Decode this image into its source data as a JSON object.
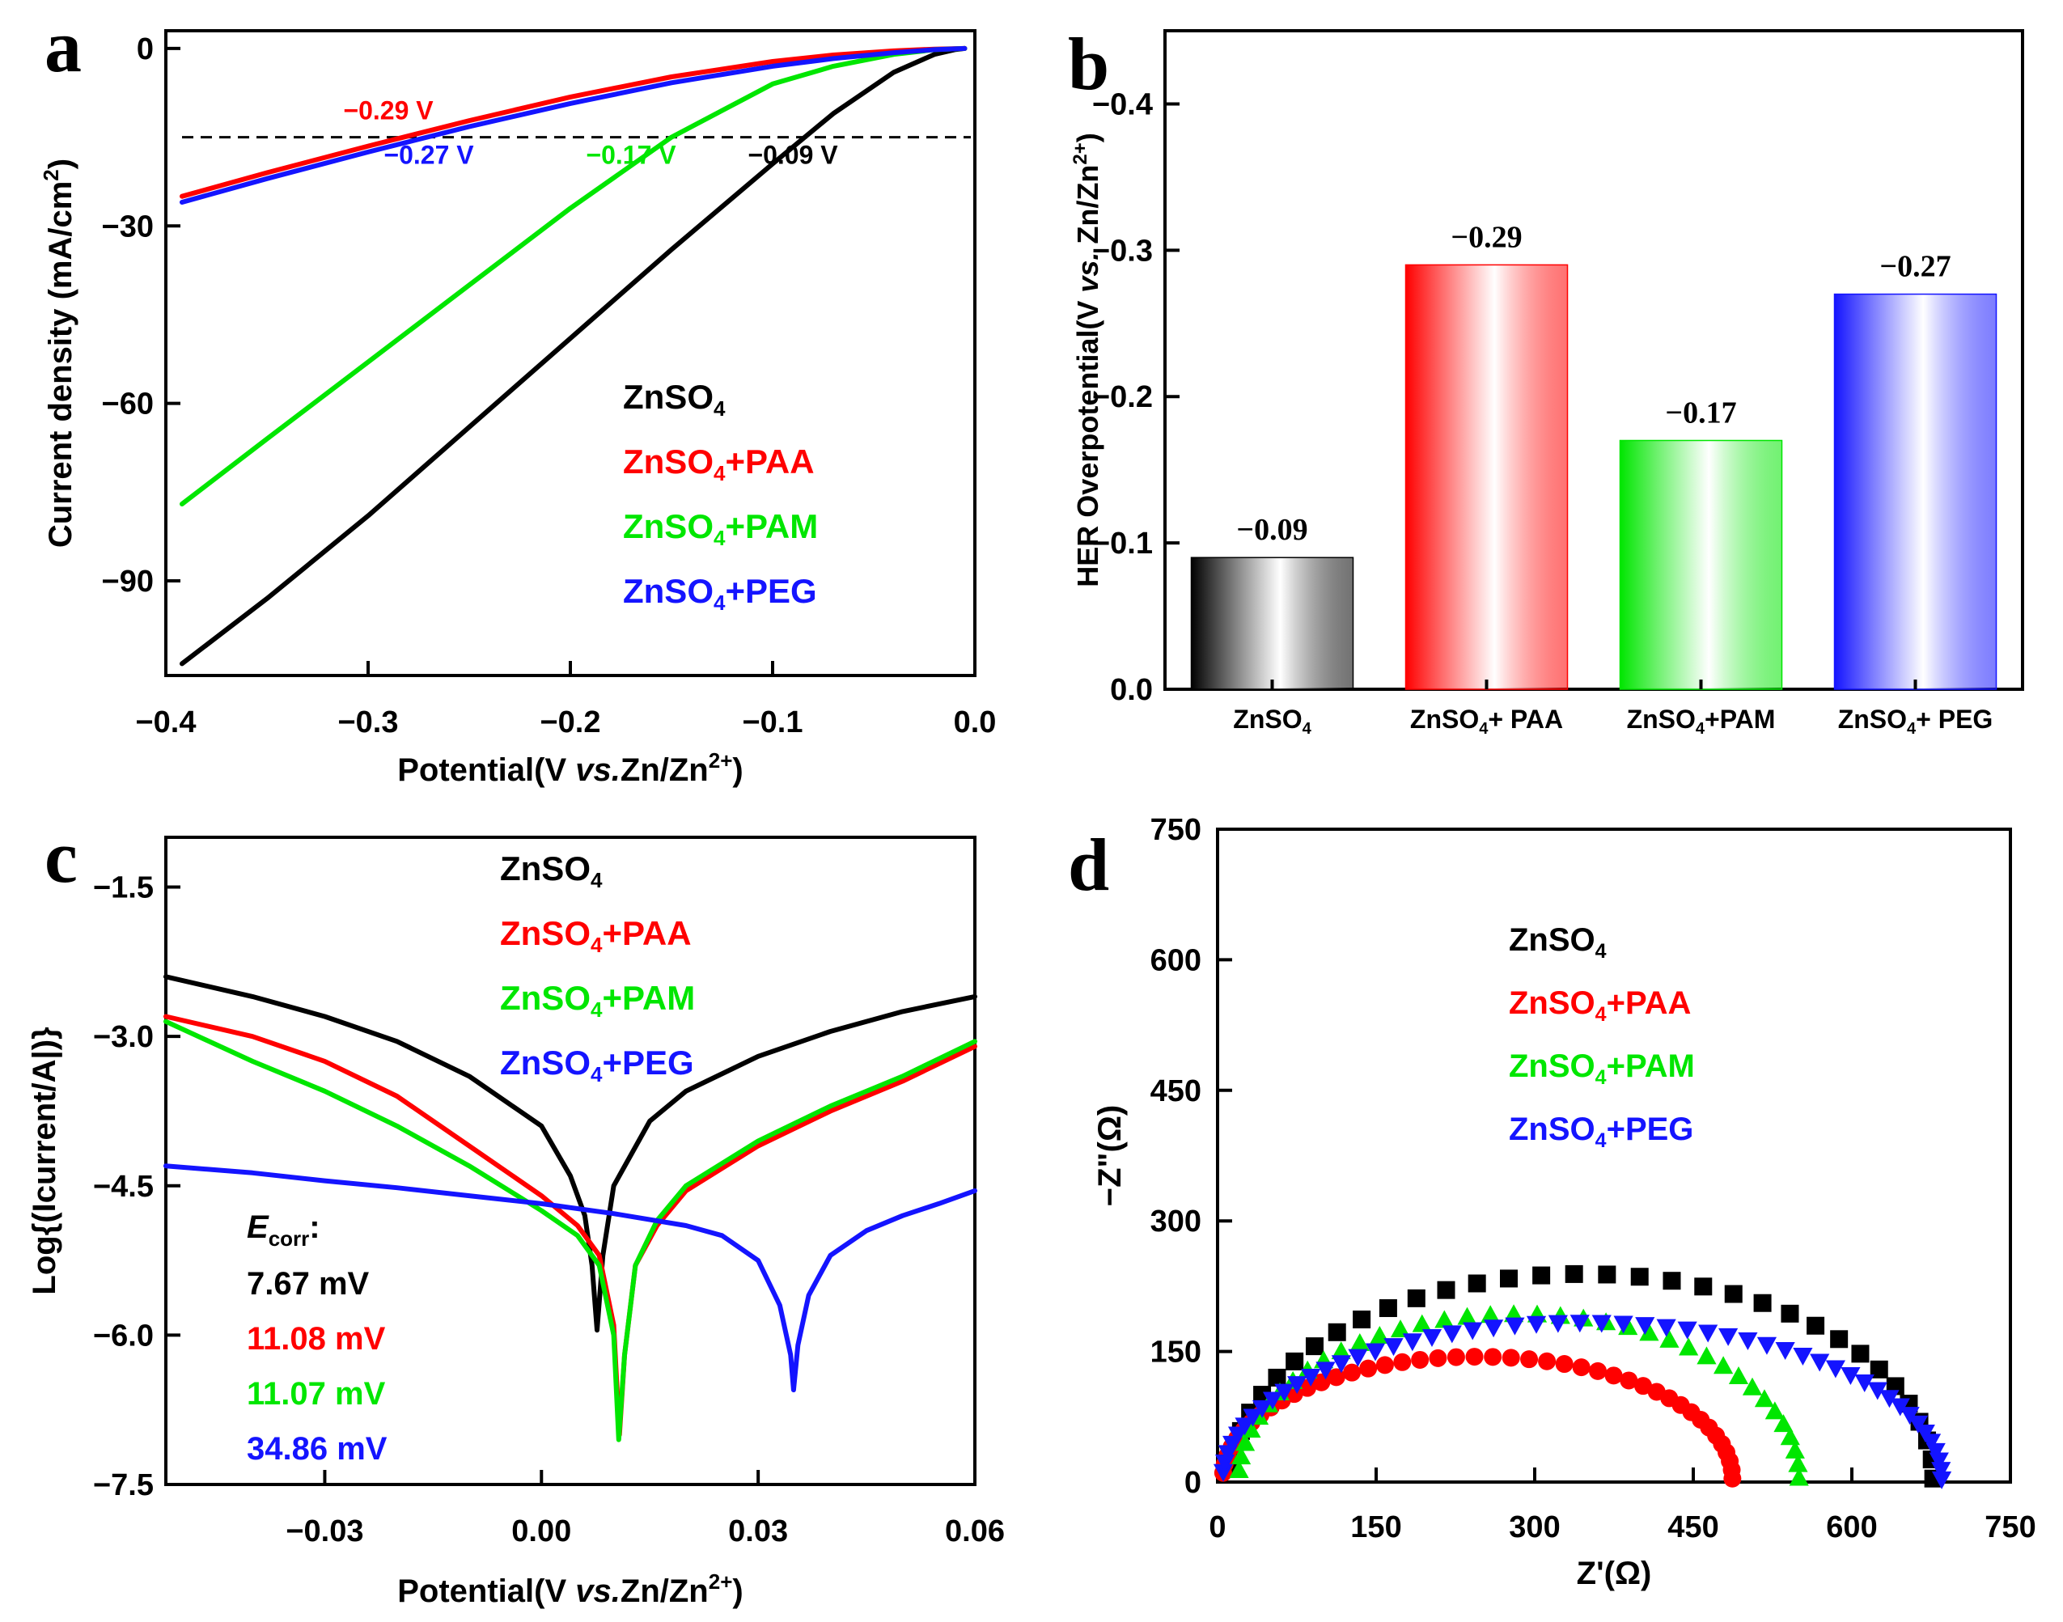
{
  "colors": {
    "ZnSO4": "#000000",
    "ZnSO4+PAA": "#ff0000",
    "ZnSO4+PAM": "#00e600",
    "ZnSO4+PEG": "#1414ff"
  },
  "chart_data": [
    {
      "panel": "a",
      "type": "line",
      "xlabel_parts": [
        "Potential(V ",
        "vs.",
        "Zn/Zn",
        "2+",
        ")"
      ],
      "ylabel_parts": [
        "Current density (mA/cm",
        "2",
        ")"
      ],
      "xlim": [
        -0.4,
        0.0
      ],
      "ylim": [
        -106,
        3
      ],
      "xticks": [
        -0.4,
        -0.3,
        -0.2,
        -0.1,
        0.0
      ],
      "xtick_labels": [
        "−0.4",
        "−0.3",
        "−0.2",
        "−0.1",
        "0.0"
      ],
      "yticks": [
        0,
        -30,
        -60,
        -90
      ],
      "ytick_labels": [
        "0",
        "−30",
        "−60",
        "−90"
      ],
      "reference_line_y": -15,
      "series": [
        {
          "name": "ZnSO4",
          "x": [
            -0.392,
            -0.35,
            -0.3,
            -0.25,
            -0.2,
            -0.15,
            -0.1,
            -0.07,
            -0.04,
            -0.02,
            -0.01,
            -0.005
          ],
          "y": [
            -104,
            -93,
            -79,
            -64,
            -49,
            -34,
            -19.5,
            -11,
            -4,
            -1,
            -0.2,
            0
          ]
        },
        {
          "name": "ZnSO4+PAA",
          "x": [
            -0.392,
            -0.35,
            -0.3,
            -0.25,
            -0.2,
            -0.15,
            -0.1,
            -0.07,
            -0.04,
            -0.02,
            -0.005
          ],
          "y": [
            -25,
            -21,
            -16.5,
            -12.2,
            -8.2,
            -4.8,
            -2.2,
            -1.1,
            -0.4,
            -0.1,
            0
          ]
        },
        {
          "name": "ZnSO4+PAM",
          "x": [
            -0.392,
            -0.35,
            -0.3,
            -0.25,
            -0.2,
            -0.15,
            -0.1,
            -0.07,
            -0.04,
            -0.02,
            -0.005
          ],
          "y": [
            -77,
            -66,
            -53,
            -40,
            -27,
            -15,
            -6,
            -3,
            -1,
            -0.2,
            0
          ]
        },
        {
          "name": "ZnSO4+PEG",
          "x": [
            -0.392,
            -0.35,
            -0.3,
            -0.25,
            -0.2,
            -0.15,
            -0.1,
            -0.07,
            -0.04,
            -0.02,
            -0.005
          ],
          "y": [
            -26,
            -22,
            -17.5,
            -13.2,
            -9.3,
            -5.8,
            -3,
            -1.7,
            -0.7,
            -0.2,
            0
          ]
        }
      ],
      "annotations": [
        {
          "text": "−0.29 V",
          "series": "ZnSO4+PAA",
          "x": -0.29,
          "y": -12
        },
        {
          "text": "−0.27 V",
          "series": "ZnSO4+PEG",
          "x": -0.27,
          "y": -19.5
        },
        {
          "text": "−0.17 V",
          "series": "ZnSO4+PAM",
          "x": -0.17,
          "y": -19.5
        },
        {
          "text": "−0.09 V",
          "series": "ZnSO4",
          "x": -0.09,
          "y": -19.5
        }
      ],
      "legend": [
        {
          "series": "ZnSO4",
          "base": "ZnSO",
          "sub": "4",
          "suffix": ""
        },
        {
          "series": "ZnSO4+PAA",
          "base": "ZnSO",
          "sub": "4",
          "suffix": "+PAA"
        },
        {
          "series": "ZnSO4+PAM",
          "base": "ZnSO",
          "sub": "4",
          "suffix": "+PAM"
        },
        {
          "series": "ZnSO4+PEG",
          "base": "ZnSO",
          "sub": "4",
          "suffix": "+PEG"
        }
      ]
    },
    {
      "panel": "b",
      "type": "bar",
      "ylabel_parts": [
        "HER Overpotential(V ",
        "vs.",
        " Zn/Zn",
        "2+",
        ")"
      ],
      "ylim": [
        0.0,
        -0.45
      ],
      "yticks": [
        0.0,
        -0.1,
        -0.2,
        -0.3,
        -0.4
      ],
      "ytick_labels": [
        "0.0",
        "−0.1",
        "−0.2",
        "−0.3",
        "−0.4"
      ],
      "categories": [
        {
          "series": "ZnSO4",
          "base": "ZnSO",
          "sub": "4",
          "suffix": ""
        },
        {
          "series": "ZnSO4+PAA",
          "base": "ZnSO",
          "sub": "4",
          "suffix": "+ PAA"
        },
        {
          "series": "ZnSO4+PAM",
          "base": "ZnSO",
          "sub": "4",
          "suffix": "+PAM"
        },
        {
          "series": "ZnSO4+PEG",
          "base": "ZnSO",
          "sub": "4",
          "suffix": "+ PEG"
        }
      ],
      "values": [
        -0.09,
        -0.29,
        -0.17,
        -0.27
      ],
      "value_labels": [
        "−0.09",
        "−0.29",
        "−0.17",
        "−0.27"
      ]
    },
    {
      "panel": "c",
      "type": "line",
      "xlabel_parts": [
        "Potential(V ",
        "vs.",
        "Zn/Zn",
        "2+",
        ")"
      ],
      "ylabel": "Log{(Icurrent/A|)}",
      "xlim": [
        -0.052,
        0.06
      ],
      "ylim": [
        -7.5,
        -1.0
      ],
      "xticks": [
        -0.03,
        0.0,
        0.03,
        0.06
      ],
      "xtick_labels": [
        "−0.03",
        "0.00",
        "0.03",
        "0.06"
      ],
      "yticks": [
        -1.5,
        -3.0,
        -4.5,
        -6.0,
        -7.5
      ],
      "ytick_labels": [
        "−1.5",
        "−3.0",
        "−4.5",
        "−6.0",
        "−7.5"
      ],
      "series": [
        {
          "name": "ZnSO4",
          "x": [
            -0.052,
            -0.04,
            -0.03,
            -0.02,
            -0.01,
            0.0,
            0.004,
            0.006,
            0.007,
            0.0077,
            0.0085,
            0.01,
            0.015,
            0.02,
            0.03,
            0.04,
            0.05,
            0.06
          ],
          "y": [
            -2.4,
            -2.6,
            -2.8,
            -3.05,
            -3.4,
            -3.9,
            -4.4,
            -4.8,
            -5.3,
            -5.95,
            -5.2,
            -4.5,
            -3.85,
            -3.55,
            -3.2,
            -2.95,
            -2.75,
            -2.6
          ]
        },
        {
          "name": "ZnSO4+PAA",
          "x": [
            -0.052,
            -0.04,
            -0.03,
            -0.02,
            -0.01,
            0.0,
            0.005,
            0.008,
            0.01,
            0.0108,
            0.0115,
            0.013,
            0.016,
            0.02,
            0.03,
            0.04,
            0.05,
            0.06
          ],
          "y": [
            -2.8,
            -3.0,
            -3.25,
            -3.6,
            -4.1,
            -4.6,
            -4.9,
            -5.2,
            -5.9,
            -7.0,
            -6.2,
            -5.3,
            -4.9,
            -4.55,
            -4.1,
            -3.75,
            -3.45,
            -3.1
          ]
        },
        {
          "name": "ZnSO4+PAM",
          "x": [
            -0.052,
            -0.04,
            -0.03,
            -0.02,
            -0.01,
            0.0,
            0.005,
            0.008,
            0.01,
            0.0107,
            0.0115,
            0.013,
            0.016,
            0.02,
            0.03,
            0.04,
            0.05,
            0.06
          ],
          "y": [
            -2.85,
            -3.25,
            -3.55,
            -3.9,
            -4.3,
            -4.75,
            -5.0,
            -5.3,
            -6.0,
            -7.05,
            -6.2,
            -5.3,
            -4.85,
            -4.5,
            -4.05,
            -3.7,
            -3.4,
            -3.05
          ]
        },
        {
          "name": "ZnSO4+PEG",
          "x": [
            -0.052,
            -0.04,
            -0.03,
            -0.02,
            -0.01,
            0.0,
            0.01,
            0.02,
            0.025,
            0.03,
            0.033,
            0.0345,
            0.0349,
            0.0355,
            0.037,
            0.04,
            0.045,
            0.05,
            0.055,
            0.06
          ],
          "y": [
            -4.3,
            -4.37,
            -4.45,
            -4.52,
            -4.6,
            -4.68,
            -4.78,
            -4.9,
            -5.0,
            -5.25,
            -5.7,
            -6.2,
            -6.55,
            -6.1,
            -5.6,
            -5.2,
            -4.95,
            -4.8,
            -4.68,
            -4.55
          ]
        }
      ],
      "legend": [
        {
          "series": "ZnSO4",
          "base": "ZnSO",
          "sub": "4",
          "suffix": ""
        },
        {
          "series": "ZnSO4+PAA",
          "base": "ZnSO",
          "sub": "4",
          "suffix": "+PAA"
        },
        {
          "series": "ZnSO4+PAM",
          "base": "ZnSO",
          "sub": "4",
          "suffix": "+PAM"
        },
        {
          "series": "ZnSO4+PEG",
          "base": "ZnSO",
          "sub": "4",
          "suffix": "+PEG"
        }
      ],
      "ecorr": {
        "label_base": "E",
        "label_sub": "corr",
        "label_suffix": ":",
        "values": [
          {
            "series": "ZnSO4",
            "text": "7.67 mV"
          },
          {
            "series": "ZnSO4+PAA",
            "text": "11.08 mV"
          },
          {
            "series": "ZnSO4+PAM",
            "text": "11.07 mV"
          },
          {
            "series": "ZnSO4+PEG",
            "text": "34.86 mV"
          }
        ]
      }
    },
    {
      "panel": "d",
      "type": "scatter",
      "xlabel": "Z'(Ω)",
      "ylabel": "−Z\"(Ω)",
      "xlim": [
        0,
        750
      ],
      "ylim": [
        0,
        750
      ],
      "xticks": [
        0,
        150,
        300,
        450,
        600,
        750
      ],
      "xtick_labels": [
        "0",
        "150",
        "300",
        "450",
        "600",
        "750"
      ],
      "yticks": [
        0,
        150,
        300,
        450,
        600,
        750
      ],
      "ytick_labels": [
        "0",
        "150",
        "300",
        "450",
        "600",
        "750"
      ],
      "series": [
        {
          "name": "ZnSO4",
          "marker": "square",
          "center": 345,
          "radius": 332,
          "ry": 235,
          "count": 34
        },
        {
          "name": "ZnSO4+PAA",
          "marker": "circle",
          "center": 246,
          "radius": 241,
          "ry": 140,
          "count": 44
        },
        {
          "name": "ZnSO4+PAM",
          "marker": "triangle-up",
          "center": 285,
          "radius": 265,
          "ry": 188,
          "count": 38
        },
        {
          "name": "ZnSO4+PEG",
          "marker": "triangle-down",
          "center": 345,
          "radius": 340,
          "ry": 180,
          "count": 52
        }
      ],
      "legend": [
        {
          "series": "ZnSO4",
          "base": "ZnSO",
          "sub": "4",
          "suffix": ""
        },
        {
          "series": "ZnSO4+PAA",
          "base": "ZnSO",
          "sub": "4",
          "suffix": "+PAA"
        },
        {
          "series": "ZnSO4+PAM",
          "base": "ZnSO",
          "sub": "4",
          "suffix": "+PAM"
        },
        {
          "series": "ZnSO4+PEG",
          "base": "ZnSO",
          "sub": "4",
          "suffix": "+PEG"
        }
      ]
    }
  ]
}
